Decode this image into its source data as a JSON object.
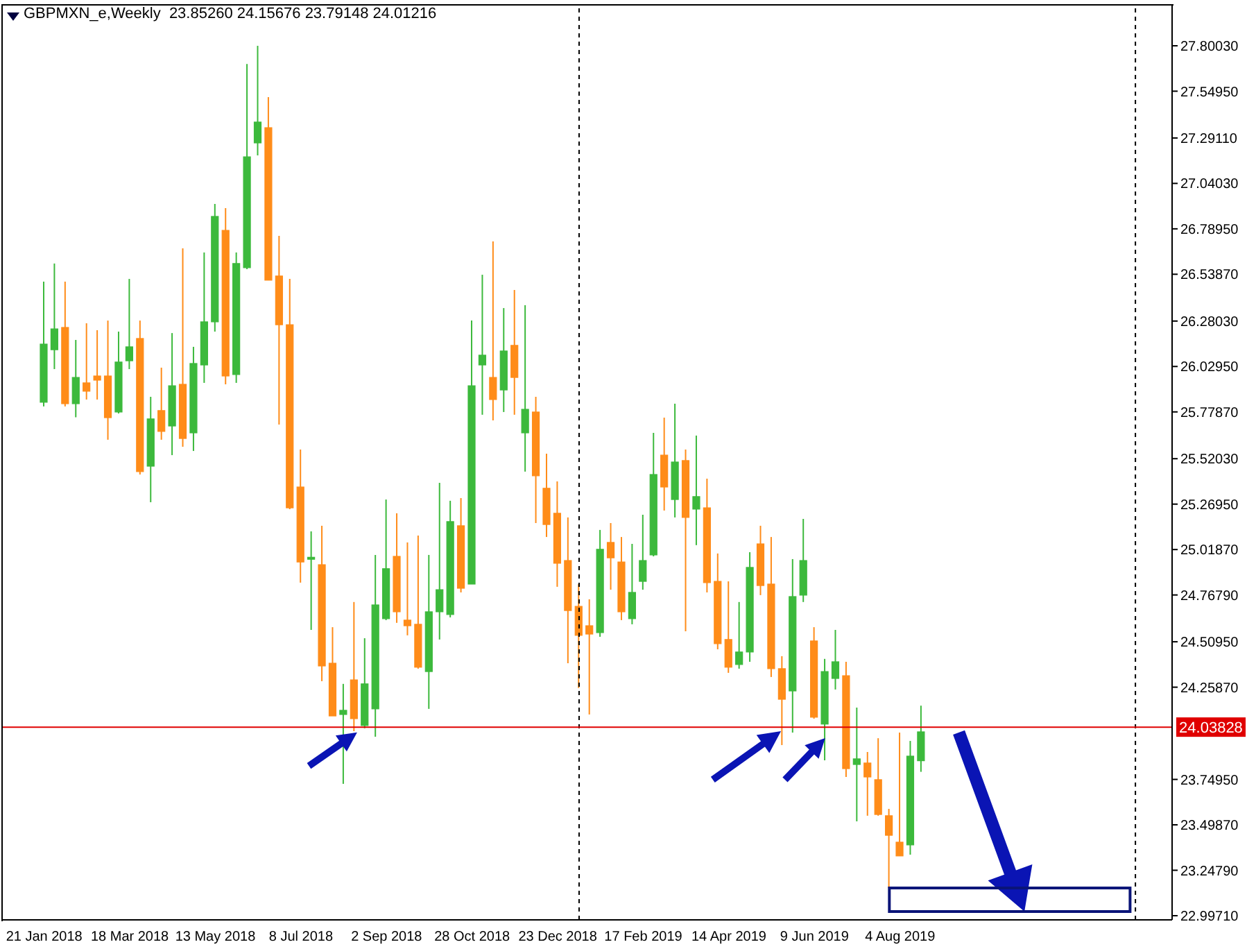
{
  "chart_data": {
    "type": "candlestick",
    "title": "GBPMXN_e,Weekly  23.85260 24.15676 23.79148 24.01216",
    "x": [
      "2018-01-21",
      "2018-01-28",
      "2018-02-04",
      "2018-02-11",
      "2018-02-18",
      "2018-02-25",
      "2018-03-04",
      "2018-03-11",
      "2018-03-18",
      "2018-03-25",
      "2018-04-01",
      "2018-04-08",
      "2018-04-15",
      "2018-04-22",
      "2018-04-29",
      "2018-05-06",
      "2018-05-13",
      "2018-05-20",
      "2018-05-27",
      "2018-06-03",
      "2018-06-10",
      "2018-06-17",
      "2018-06-24",
      "2018-07-01",
      "2018-07-08",
      "2018-07-15",
      "2018-07-22",
      "2018-07-29",
      "2018-08-05",
      "2018-08-12",
      "2018-08-19",
      "2018-08-26",
      "2018-09-02",
      "2018-09-09",
      "2018-09-16",
      "2018-09-23",
      "2018-09-30",
      "2018-10-07",
      "2018-10-14",
      "2018-10-21",
      "2018-10-28",
      "2018-11-04",
      "2018-11-11",
      "2018-11-18",
      "2018-11-25",
      "2018-12-02",
      "2018-12-09",
      "2018-12-16",
      "2018-12-23",
      "2018-12-30",
      "2019-01-06",
      "2019-01-13",
      "2019-01-20",
      "2019-01-27",
      "2019-02-03",
      "2019-02-10",
      "2019-02-17",
      "2019-02-24",
      "2019-03-03",
      "2019-03-10",
      "2019-03-17",
      "2019-03-24",
      "2019-03-31",
      "2019-04-07",
      "2019-04-14",
      "2019-04-21",
      "2019-04-28",
      "2019-05-05",
      "2019-05-12",
      "2019-05-19",
      "2019-05-26",
      "2019-06-02",
      "2019-06-09",
      "2019-06-16",
      "2019-06-23",
      "2019-06-30",
      "2019-07-07",
      "2019-07-14",
      "2019-07-21",
      "2019-07-28",
      "2019-08-04",
      "2019-08-11",
      "2019-08-18"
    ],
    "ohlc": [
      [
        25.832,
        26.498,
        25.809,
        26.153
      ],
      [
        26.122,
        26.598,
        26.015,
        26.237
      ],
      [
        26.245,
        26.498,
        25.809,
        25.824
      ],
      [
        25.824,
        26.176,
        25.749,
        25.969
      ],
      [
        25.939,
        26.268,
        25.847,
        25.893
      ],
      [
        25.977,
        26.23,
        25.847,
        25.954
      ],
      [
        25.977,
        26.283,
        25.625,
        25.747
      ],
      [
        25.778,
        26.222,
        25.77,
        26.054
      ],
      [
        26.061,
        26.513,
        26.015,
        26.138
      ],
      [
        26.184,
        26.283,
        25.433,
        25.449
      ],
      [
        25.479,
        25.862,
        25.28,
        25.74
      ],
      [
        25.786,
        26.023,
        25.625,
        25.671
      ],
      [
        25.701,
        26.214,
        25.54,
        25.923
      ],
      [
        25.931,
        26.682,
        25.586,
        25.632
      ],
      [
        25.663,
        26.138,
        25.563,
        26.046
      ],
      [
        26.038,
        26.659,
        25.939,
        26.276
      ],
      [
        26.276,
        26.927,
        26.222,
        26.858
      ],
      [
        26.781,
        26.904,
        25.931,
        25.977
      ],
      [
        25.985,
        26.659,
        25.939,
        26.598
      ],
      [
        26.575,
        27.7,
        26.567,
        27.187
      ],
      [
        27.264,
        27.8,
        27.195,
        27.379
      ],
      [
        27.348,
        27.517,
        26.506,
        26.506
      ],
      [
        26.529,
        26.751,
        25.709,
        26.26
      ],
      [
        26.26,
        26.513,
        25.242,
        25.249
      ],
      [
        25.364,
        25.571,
        24.836,
        24.95
      ],
      [
        24.965,
        25.119,
        24.575,
        24.976
      ],
      [
        24.935,
        25.15,
        24.292,
        24.376
      ],
      [
        24.391,
        24.59,
        24.1,
        24.1
      ],
      [
        24.108,
        24.277,
        23.725,
        24.131
      ],
      [
        24.299,
        24.729,
        24.016,
        24.085
      ],
      [
        24.047,
        24.529,
        24.032,
        24.277
      ],
      [
        24.139,
        24.989,
        23.985,
        24.713
      ],
      [
        24.637,
        25.295,
        24.629,
        24.913
      ],
      [
        24.981,
        25.219,
        24.614,
        24.675
      ],
      [
        24.629,
        25.058,
        24.545,
        24.598
      ],
      [
        24.606,
        25.096,
        24.361,
        24.369
      ],
      [
        24.345,
        24.989,
        24.139,
        24.675
      ],
      [
        24.675,
        25.387,
        24.522,
        24.797
      ],
      [
        24.66,
        25.288,
        24.644,
        25.173
      ],
      [
        25.15,
        25.303,
        24.782,
        24.805
      ],
      [
        24.828,
        26.283,
        24.828,
        25.923
      ],
      [
        26.038,
        26.536,
        25.763,
        26.092
      ],
      [
        25.969,
        26.72,
        25.732,
        25.847
      ],
      [
        25.9,
        26.352,
        25.778,
        26.115
      ],
      [
        26.146,
        26.452,
        25.763,
        25.969
      ],
      [
        25.663,
        26.368,
        25.449,
        25.793
      ],
      [
        25.778,
        25.862,
        25.165,
        25.426
      ],
      [
        25.357,
        25.548,
        25.088,
        25.157
      ],
      [
        25.219,
        25.395,
        24.813,
        24.943
      ],
      [
        24.958,
        25.196,
        24.391,
        24.682
      ],
      [
        24.705,
        24.828,
        24.254,
        24.545
      ],
      [
        24.598,
        24.744,
        24.108,
        24.552
      ],
      [
        24.56,
        25.127,
        24.537,
        25.02
      ],
      [
        25.058,
        25.165,
        24.797,
        24.973
      ],
      [
        24.95,
        25.088,
        24.629,
        24.675
      ],
      [
        24.637,
        25.05,
        24.606,
        24.782
      ],
      [
        24.843,
        25.211,
        24.797,
        24.958
      ],
      [
        24.989,
        25.663,
        24.981,
        25.433
      ],
      [
        25.54,
        25.747,
        25.234,
        25.364
      ],
      [
        25.295,
        25.824,
        25.196,
        25.502
      ],
      [
        25.51,
        25.571,
        24.567,
        25.196
      ],
      [
        25.242,
        25.648,
        25.043,
        25.311
      ],
      [
        25.249,
        25.41,
        24.782,
        24.836
      ],
      [
        24.843,
        24.997,
        24.468,
        24.499
      ],
      [
        24.522,
        24.843,
        24.338,
        24.369
      ],
      [
        24.384,
        24.729,
        24.361,
        24.453
      ],
      [
        24.453,
        25.004,
        24.399,
        24.92
      ],
      [
        25.05,
        25.15,
        24.767,
        24.82
      ],
      [
        24.828,
        25.088,
        24.315,
        24.361
      ],
      [
        24.361,
        24.43,
        23.939,
        24.192
      ],
      [
        24.238,
        24.966,
        24.008,
        24.759
      ],
      [
        24.767,
        25.188,
        24.729,
        24.958
      ],
      [
        24.514,
        24.59,
        24.085,
        24.093
      ],
      [
        24.055,
        24.415,
        23.855,
        24.345
      ],
      [
        24.307,
        24.575,
        24.246,
        24.399
      ],
      [
        24.322,
        24.399,
        23.763,
        23.809
      ],
      [
        23.832,
        24.146,
        23.518,
        23.863
      ],
      [
        23.84,
        23.901,
        23.549,
        23.763
      ],
      [
        23.748,
        23.977,
        23.549,
        23.556
      ],
      [
        23.549,
        23.587,
        23.15,
        23.441
      ],
      [
        23.403,
        24.008,
        23.327,
        23.327
      ],
      [
        23.388,
        23.962,
        23.334,
        23.878
      ],
      [
        23.8526,
        24.15676,
        23.79148,
        24.01216
      ]
    ],
    "colors": [
      "#3cb93c",
      "#3cb93c",
      "#ff8c19",
      "#3cb93c",
      "#ff8c19",
      "#ff8c19",
      "#ff8c19",
      "#3cb93c",
      "#3cb93c",
      "#ff8c19",
      "#3cb93c",
      "#ff8c19",
      "#3cb93c",
      "#ff8c19",
      "#3cb93c",
      "#3cb93c",
      "#3cb93c",
      "#ff8c19",
      "#3cb93c",
      "#3cb93c",
      "#3cb93c",
      "#ff8c19",
      "#ff8c19",
      "#ff8c19",
      "#ff8c19",
      "#3cb93c",
      "#ff8c19",
      "#ff8c19",
      "#3cb93c",
      "#ff8c19",
      "#3cb93c",
      "#3cb93c",
      "#3cb93c",
      "#ff8c19",
      "#ff8c19",
      "#ff8c19",
      "#3cb93c",
      "#3cb93c",
      "#3cb93c",
      "#ff8c19",
      "#3cb93c",
      "#3cb93c",
      "#ff8c19",
      "#3cb93c",
      "#ff8c19",
      "#3cb93c",
      "#ff8c19",
      "#ff8c19",
      "#ff8c19",
      "#ff8c19",
      "#ff8c19",
      "#ff8c19",
      "#3cb93c",
      "#ff8c19",
      "#ff8c19",
      "#3cb93c",
      "#3cb93c",
      "#3cb93c",
      "#ff8c19",
      "#3cb93c",
      "#ff8c19",
      "#3cb93c",
      "#ff8c19",
      "#ff8c19",
      "#ff8c19",
      "#3cb93c",
      "#3cb93c",
      "#ff8c19",
      "#ff8c19",
      "#ff8c19",
      "#3cb93c",
      "#3cb93c",
      "#ff8c19",
      "#3cb93c",
      "#3cb93c",
      "#ff8c19",
      "#3cb93c",
      "#ff8c19",
      "#ff8c19",
      "#ff8c19",
      "#ff8c19",
      "#3cb93c",
      "#3cb93c"
    ],
    "xlim": [
      "2017-12-24",
      "2020-01-29"
    ],
    "xticks": [
      {
        "value": "2018-01-21",
        "label": "21 Jan 2018"
      },
      {
        "value": "2018-03-18",
        "label": "18 Mar 2018"
      },
      {
        "value": "2018-05-13",
        "label": "13 May 2018"
      },
      {
        "value": "2018-07-08",
        "label": "8 Jul 2018"
      },
      {
        "value": "2018-09-02",
        "label": "2 Sep 2018"
      },
      {
        "value": "2018-10-28",
        "label": "28 Oct 2018"
      },
      {
        "value": "2018-12-23",
        "label": "23 Dec 2018"
      },
      {
        "value": "2019-02-17",
        "label": "17 Feb 2019"
      },
      {
        "value": "2019-04-14",
        "label": "14 Apr 2019"
      },
      {
        "value": "2019-06-09",
        "label": "9 Jun 2019"
      },
      {
        "value": "2019-08-04",
        "label": "4 Aug 2019"
      }
    ],
    "ylim": [
      22.974,
      28.03
    ],
    "yticks": [
      {
        "value": 22.9971,
        "label": "22.99710"
      },
      {
        "value": 23.2479,
        "label": "23.24790"
      },
      {
        "value": 23.4987,
        "label": "23.49870"
      },
      {
        "value": 23.7495,
        "label": "23.74950"
      },
      {
        "value": 24.2587,
        "label": "24.25870"
      },
      {
        "value": 24.5095,
        "label": "24.50950"
      },
      {
        "value": 24.7679,
        "label": "24.76790"
      },
      {
        "value": 25.0187,
        "label": "25.01870"
      },
      {
        "value": 25.2695,
        "label": "25.26950"
      },
      {
        "value": 25.5203,
        "label": "25.52030"
      },
      {
        "value": 25.7787,
        "label": "25.77870"
      },
      {
        "value": 26.0295,
        "label": "26.02950"
      },
      {
        "value": 26.2803,
        "label": "26.28030"
      },
      {
        "value": 26.5387,
        "label": "26.53870"
      },
      {
        "value": 26.7895,
        "label": "26.78950"
      },
      {
        "value": 27.0403,
        "label": "27.04030"
      },
      {
        "value": 27.2911,
        "label": "27.29110"
      },
      {
        "value": 27.5495,
        "label": "27.54950"
      },
      {
        "value": 27.8003,
        "label": "27.80030"
      }
    ],
    "ref_lines": [
      {
        "axis": "x",
        "value": "2019-01-06",
        "color": "#000000",
        "line_style": "dashed"
      },
      {
        "axis": "x",
        "value": "2020-01-05",
        "color": "#000000",
        "line_style": "dashed"
      },
      {
        "axis": "y",
        "value": 24.03828,
        "label": "24.03828",
        "color": "#e00000",
        "line_style": "solid"
      }
    ]
  }
}
